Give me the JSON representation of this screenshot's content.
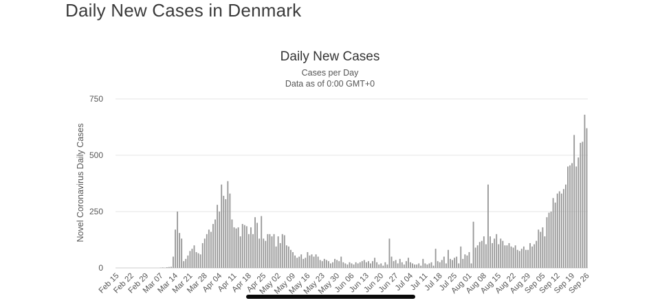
{
  "page": {
    "title": "Daily New Cases in Denmark"
  },
  "chart_data": {
    "type": "bar",
    "title": "Daily New Cases",
    "subtitle_lines": [
      "Cases per Day",
      "Data as of 0:00 GMT+0"
    ],
    "ylabel": "Novel Coronavirus Daily Cases",
    "xlabel": "",
    "ylim": [
      0,
      750
    ],
    "yticks": [
      0,
      250,
      500,
      750
    ],
    "grid": true,
    "bar_color": "#999999",
    "start_date": "2020-02-15",
    "x_tick_labels": [
      "Feb 15",
      "Feb 22",
      "Feb 29",
      "Mar 07",
      "Mar 14",
      "Mar 21",
      "Mar 28",
      "Apr 04",
      "Apr 11",
      "Apr 18",
      "Apr 25",
      "May 02",
      "May 09",
      "May 16",
      "May 23",
      "May 30",
      "Jun 06",
      "Jun 13",
      "Jun 20",
      "Jun 27",
      "Jul 04",
      "Jul 11",
      "Jul 18",
      "Jul 25",
      "Aug 01",
      "Aug 08",
      "Aug 15",
      "Aug 22",
      "Aug 29",
      "Sep 05",
      "Sep 12",
      "Sep 19",
      "Sep 26"
    ],
    "values": [
      0,
      0,
      0,
      0,
      0,
      0,
      0,
      0,
      0,
      0,
      0,
      0,
      0,
      0,
      0,
      0,
      0,
      0,
      0,
      0,
      0,
      1,
      2,
      1,
      3,
      4,
      5,
      50,
      170,
      250,
      155,
      130,
      30,
      40,
      55,
      75,
      85,
      100,
      70,
      65,
      60,
      110,
      130,
      150,
      170,
      160,
      195,
      215,
      280,
      250,
      370,
      320,
      305,
      385,
      330,
      215,
      180,
      175,
      180,
      140,
      195,
      190,
      185,
      150,
      180,
      150,
      225,
      200,
      130,
      230,
      130,
      120,
      150,
      150,
      140,
      150,
      95,
      140,
      110,
      150,
      145,
      100,
      95,
      80,
      70,
      55,
      45,
      50,
      60,
      40,
      45,
      70,
      55,
      60,
      50,
      60,
      50,
      35,
      30,
      40,
      35,
      30,
      20,
      25,
      40,
      35,
      30,
      50,
      25,
      20,
      15,
      25,
      20,
      15,
      25,
      20,
      25,
      30,
      35,
      25,
      30,
      20,
      30,
      45,
      25,
      15,
      20,
      10,
      25,
      15,
      130,
      50,
      30,
      35,
      20,
      40,
      25,
      15,
      30,
      45,
      25,
      20,
      15,
      15,
      20,
      10,
      40,
      20,
      15,
      20,
      25,
      10,
      85,
      30,
      25,
      35,
      50,
      20,
      80,
      40,
      35,
      45,
      50,
      20,
      95,
      40,
      60,
      55,
      70,
      20,
      205,
      90,
      100,
      115,
      120,
      140,
      105,
      370,
      140,
      110,
      130,
      150,
      105,
      130,
      120,
      100,
      100,
      110,
      95,
      90,
      100,
      80,
      75,
      85,
      95,
      80,
      80,
      110,
      95,
      105,
      120,
      170,
      160,
      180,
      140,
      225,
      245,
      250,
      310,
      290,
      330,
      340,
      330,
      350,
      370,
      450,
      455,
      465,
      590,
      450,
      490,
      555,
      560,
      680,
      620
    ]
  }
}
